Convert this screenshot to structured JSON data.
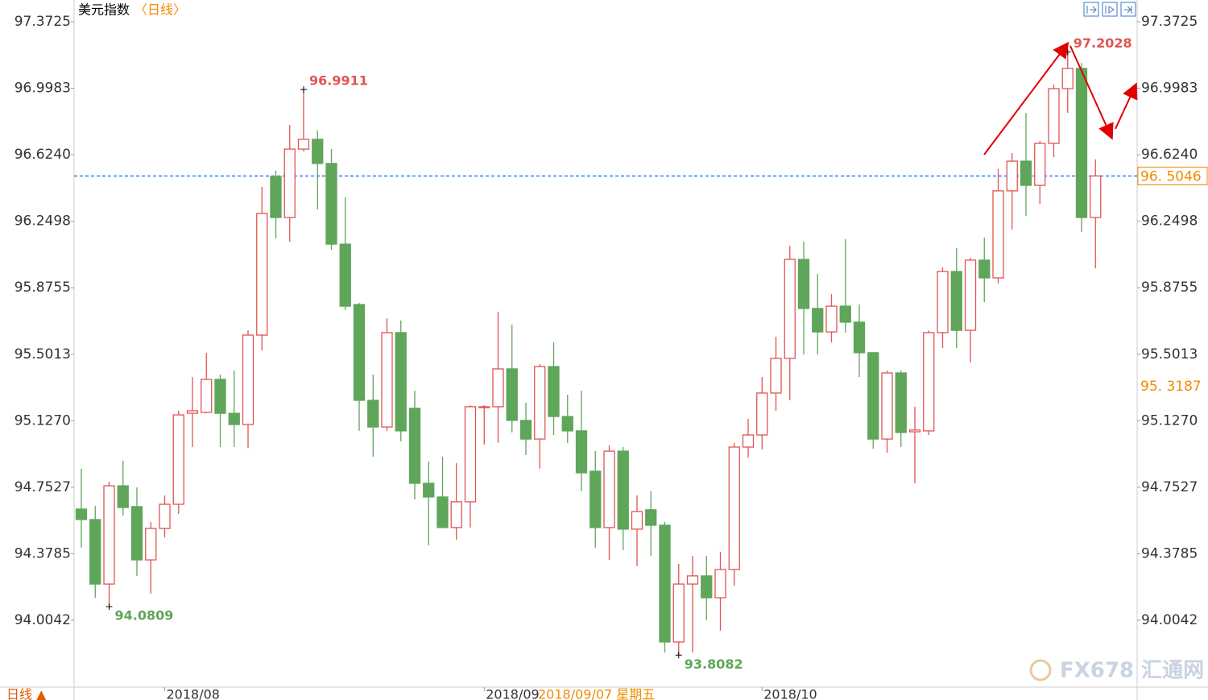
{
  "chart_data": {
    "type": "candlestick",
    "title": "美元指数",
    "subtitle": "〈日线〉",
    "period_button": "日线 ▲",
    "watermark": "FX678 汇通网",
    "crosshair_label": "2018/09/07 星期五",
    "up_color": "#e05555",
    "down_color": "#5fa55a",
    "categories": [
      null,
      null,
      null,
      null,
      null,
      null,
      "2018/08",
      null,
      null,
      null,
      null,
      null,
      null,
      null,
      null,
      null,
      null,
      null,
      null,
      null,
      null,
      null,
      null,
      null,
      null,
      null,
      null,
      null,
      null,
      "2018/09",
      null,
      null,
      null,
      null,
      null,
      null,
      null,
      null,
      null,
      null,
      null,
      null,
      null,
      null,
      null,
      null,
      null,
      null,
      null,
      "2018/10",
      null,
      null,
      null,
      null,
      null,
      null,
      null,
      null,
      null,
      null,
      null,
      null,
      null,
      null,
      null,
      null,
      null,
      null,
      null,
      null,
      null,
      null,
      null,
      null
    ],
    "open": [
      94.63,
      94.571,
      94.208,
      94.761,
      94.644,
      94.344,
      94.521,
      94.657,
      95.169,
      95.174,
      95.36,
      95.169,
      95.106,
      95.609,
      96.502,
      96.271,
      96.656,
      96.711,
      96.575,
      96.121,
      95.781,
      95.242,
      95.092,
      95.623,
      95.197,
      94.775,
      94.698,
      94.526,
      94.671,
      95.201,
      95.206,
      95.419,
      95.129,
      95.024,
      95.432,
      95.151,
      95.07,
      94.843,
      94.526,
      94.956,
      94.517,
      94.626,
      94.539,
      93.882,
      94.208,
      94.254,
      94.131,
      94.29,
      94.979,
      95.047,
      95.283,
      95.478,
      96.035,
      95.759,
      95.627,
      95.772,
      95.682,
      95.51,
      95.024,
      95.396,
      95.065,
      95.07,
      95.623,
      95.967,
      95.636,
      96.031,
      95.931,
      96.421,
      96.588,
      96.452,
      96.688,
      96.996,
      97.11,
      96.271
    ],
    "high": [
      94.857,
      94.648,
      94.784,
      94.902,
      94.752,
      94.557,
      94.707,
      95.183,
      95.373,
      95.509,
      95.387,
      95.41,
      95.636,
      96.443,
      96.534,
      96.792,
      96.9911,
      96.761,
      96.656,
      96.384,
      95.79,
      95.387,
      95.704,
      95.691,
      95.296,
      94.897,
      94.925,
      94.888,
      95.215,
      95.215,
      95.741,
      95.668,
      95.228,
      95.446,
      95.568,
      95.274,
      95.296,
      94.956,
      94.988,
      94.979,
      94.707,
      94.73,
      94.558,
      94.322,
      94.367,
      94.367,
      94.39,
      95.002,
      95.138,
      95.373,
      95.6,
      96.112,
      96.135,
      95.954,
      95.84,
      96.149,
      95.781,
      95.51,
      95.41,
      95.41,
      95.206,
      95.636,
      95.99,
      96.099,
      96.044,
      96.158,
      96.543,
      96.634,
      96.86,
      96.702,
      97.019,
      97.2028,
      97.141,
      96.598
    ],
    "low": [
      94.413,
      94.131,
      94.0809,
      94.594,
      94.254,
      94.154,
      94.471,
      94.603,
      94.979,
      95.169,
      94.979,
      94.979,
      94.974,
      95.523,
      96.153,
      96.135,
      96.643,
      96.316,
      96.09,
      95.75,
      95.07,
      94.925,
      95.07,
      95.011,
      94.684,
      94.426,
      94.526,
      94.458,
      94.526,
      94.993,
      95.002,
      95.061,
      94.934,
      94.857,
      95.047,
      95.002,
      94.73,
      94.413,
      94.344,
      94.399,
      94.308,
      94.367,
      93.823,
      93.8082,
      93.823,
      94.004,
      93.946,
      94.199,
      94.92,
      94.965,
      95.183,
      95.242,
      95.5,
      95.5,
      95.568,
      95.623,
      95.373,
      94.97,
      94.947,
      94.979,
      94.775,
      95.047,
      95.536,
      95.536,
      95.455,
      95.795,
      95.899,
      96.203,
      96.28,
      96.348,
      96.611,
      96.86,
      96.189,
      95.985
    ],
    "close": [
      94.571,
      94.208,
      94.761,
      94.639,
      94.344,
      94.521,
      94.657,
      95.16,
      95.183,
      95.36,
      95.169,
      95.106,
      95.609,
      96.294,
      96.271,
      96.656,
      96.711,
      96.575,
      96.121,
      95.772,
      95.242,
      95.092,
      95.623,
      95.07,
      94.775,
      94.698,
      94.526,
      94.671,
      95.206,
      95.206,
      95.419,
      95.129,
      95.024,
      95.432,
      95.151,
      95.07,
      94.834,
      94.526,
      94.956,
      94.517,
      94.616,
      94.539,
      93.882,
      94.208,
      94.254,
      94.131,
      94.29,
      94.979,
      95.047,
      95.283,
      95.478,
      96.035,
      95.759,
      95.627,
      95.772,
      95.682,
      95.51,
      95.024,
      95.396,
      95.061,
      95.075,
      95.623,
      95.967,
      95.636,
      96.031,
      95.931,
      96.421,
      96.588,
      96.452,
      96.688,
      96.996,
      97.11,
      96.271,
      96.5046
    ],
    "ylim": [
      93.628,
      97.495
    ],
    "yticks": [
      94.0042,
      94.3785,
      {
        "value": 94.7527,
        "label": "94.7527"
      },
      {
        "value": 95.127,
        "label": "95.1270"
      },
      95.5013,
      95.8755,
      96.2498,
      {
        "value": 96.624,
        "label": "96.6240"
      },
      96.9983,
      97.3725
    ],
    "price_lines": [
      {
        "value": 96.5046,
        "label": "96. 5046",
        "color": "#2a7fff"
      },
      {
        "value": 95.3187,
        "label": "95. 3187",
        "color": "#f08c00"
      }
    ],
    "grid": false
  }
}
